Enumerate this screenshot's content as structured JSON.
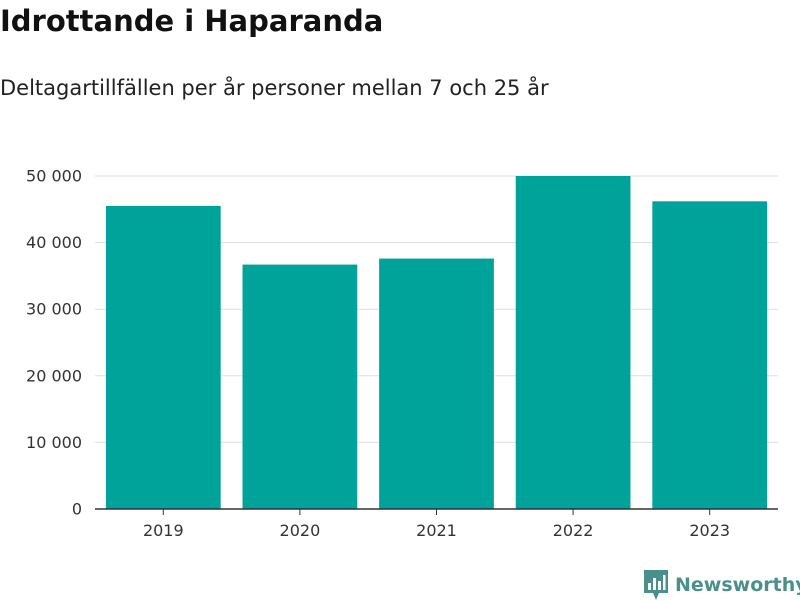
{
  "header": {
    "title": "Idrottande i Haparanda",
    "subtitle": "Deltagartillfällen per år personer mellan 7 och 25 år"
  },
  "brand": {
    "name": "Newsworthy",
    "icon": "newsworthy-logo-icon",
    "color": "#4a8f8a"
  },
  "chart_data": {
    "type": "bar",
    "categories": [
      "2019",
      "2020",
      "2021",
      "2022",
      "2023"
    ],
    "values": [
      45500,
      36700,
      37600,
      50000,
      46200
    ],
    "title": "Idrottande i Haparanda",
    "subtitle": "Deltagartillfällen per år personer mellan 7 och 25 år",
    "xlabel": "",
    "ylabel": "",
    "ylim": [
      0,
      50000
    ],
    "yticks": [
      0,
      10000,
      20000,
      30000,
      40000,
      50000
    ],
    "ytick_labels": [
      "0",
      "10 000",
      "20 000",
      "30 000",
      "40 000",
      "50 000"
    ],
    "grid": true,
    "bar_color": "#00a399"
  }
}
